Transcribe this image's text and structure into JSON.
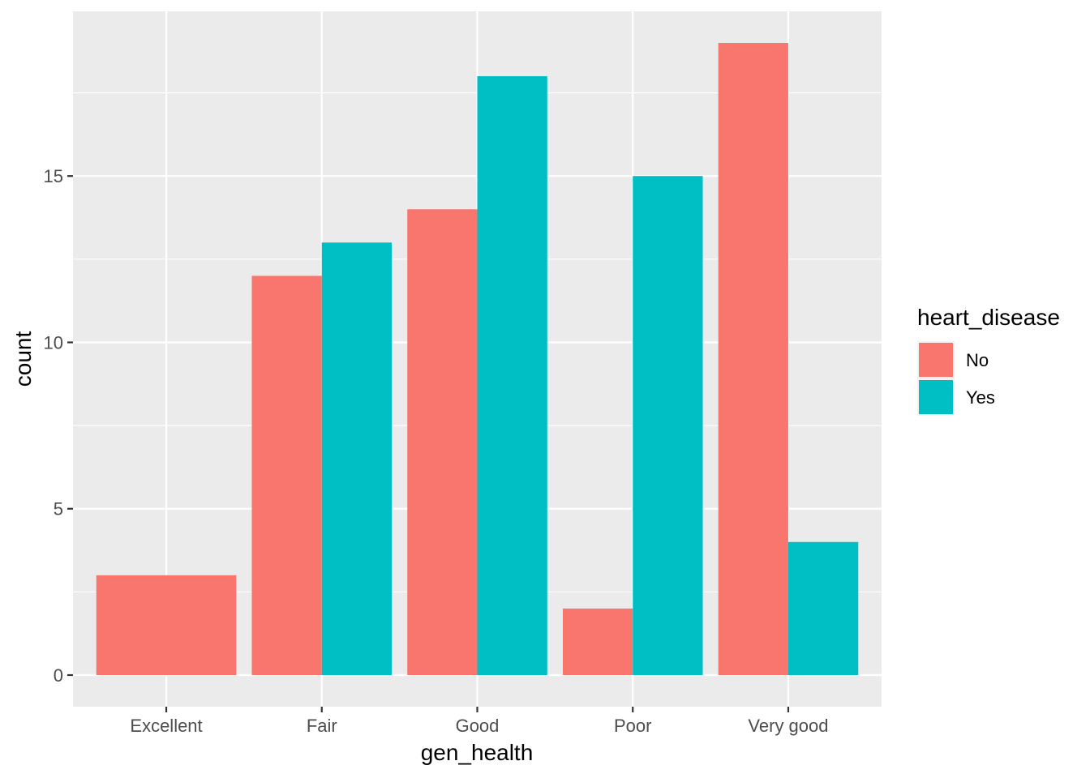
{
  "chart_data": {
    "type": "bar",
    "position": "dodge",
    "categories": [
      "Excellent",
      "Fair",
      "Good",
      "Poor",
      "Very good"
    ],
    "series": [
      {
        "name": "No",
        "color": "#F8766D",
        "values": [
          3,
          12,
          14,
          2,
          19
        ]
      },
      {
        "name": "Yes",
        "color": "#00BFC4",
        "values": [
          null,
          13,
          18,
          15,
          4
        ]
      }
    ],
    "xlabel": "gen_health",
    "ylabel": "count",
    "ylim": [
      -0.95,
      19.95
    ],
    "yticks": [
      0,
      5,
      10,
      15
    ],
    "grid": true,
    "legend": {
      "title": "heart_disease",
      "placement": "right"
    },
    "panel_background": "#EBEBEB"
  }
}
